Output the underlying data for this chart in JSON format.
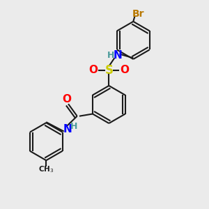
{
  "background_color": "#ebebeb",
  "bond_color": "#1a1a1a",
  "colors": {
    "C": "#1a1a1a",
    "N": "#0000ff",
    "O": "#ff0000",
    "S": "#cccc00",
    "Br": "#b87800",
    "H": "#4a9a9a"
  },
  "figsize": [
    3.0,
    3.0
  ],
  "dpi": 100
}
